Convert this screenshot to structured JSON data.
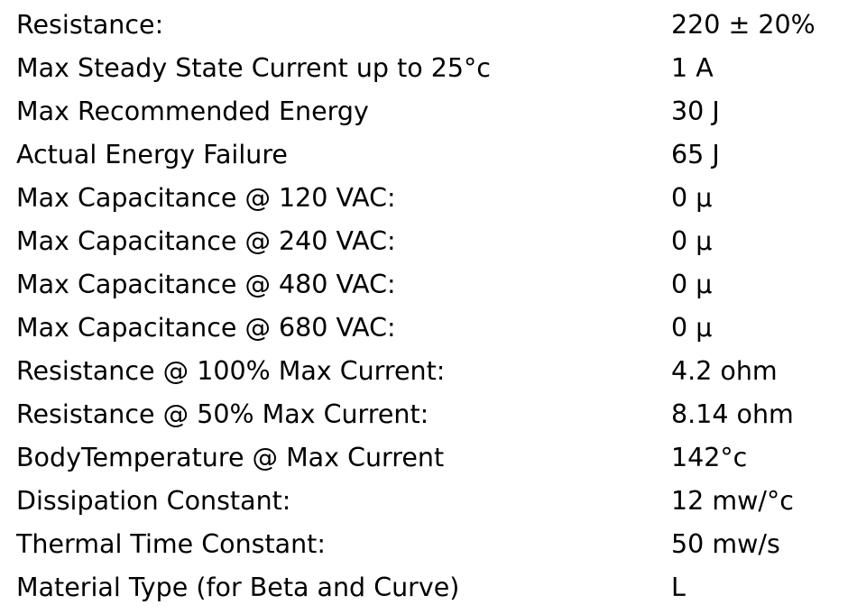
{
  "table": {
    "rows": [
      [
        "Resistance:",
        "220 ± 20%"
      ],
      [
        "Max Steady State Current up to 25°c",
        "1 A"
      ],
      [
        "Max Recommended Energy",
        "30 J"
      ],
      [
        "Actual Energy Failure",
        "65 J"
      ],
      [
        "Max Capacitance @ 120 VAC:",
        "0 µ"
      ],
      [
        "Max Capacitance @ 240 VAC:",
        "0 µ"
      ],
      [
        "Max Capacitance @ 480 VAC:",
        "0 µ"
      ],
      [
        "Max Capacitance @ 680 VAC:",
        "0 µ"
      ],
      [
        "Resistance @ 100% Max Current:",
        "4.2 ohm"
      ],
      [
        "Resistance @ 50% Max Current:",
        "8.14 ohm"
      ],
      [
        "BodyTemperature @ Max Current",
        "142°c"
      ],
      [
        "Dissipation Constant:",
        "12 mw/°c"
      ],
      [
        "Thermal Time Constant:",
        "50 mw/s"
      ],
      [
        "Material Type (for Beta and Curve)",
        "L"
      ]
    ]
  }
}
